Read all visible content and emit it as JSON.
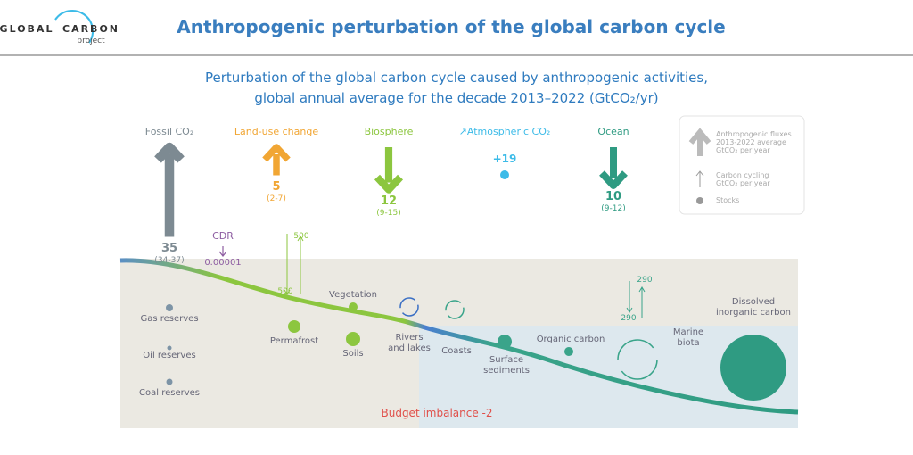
{
  "header": {
    "logo_left": "GLOBAL",
    "logo_right": "CARBON",
    "logo_sub": "project",
    "title": "Anthropogenic perturbation of the global carbon cycle"
  },
  "subtitle": [
    "Perturbation of the global carbon cycle caused by anthropogenic activities,",
    "global annual average for the decade 2013–2022 (GtCO₂/yr)"
  ],
  "fluxes": [
    {
      "label": "Fossil CO₂",
      "value": 35,
      "range": "(34-37)",
      "color": "#7d8a92",
      "direction": "up"
    },
    {
      "label": "Land-use change",
      "value": 5,
      "range": "(2-7)",
      "color": "#f1a634",
      "direction": "up"
    },
    {
      "label": "Biosphere",
      "value": 12,
      "range": "(9-15)",
      "color": "#8cc63f",
      "direction": "down"
    },
    {
      "label": "↗Atmospheric CO₂",
      "value": "+19",
      "color": "#3cbbe8"
    },
    {
      "label": "Ocean",
      "value": 10,
      "range": "(9-12)",
      "color": "#2f9b82",
      "direction": "down"
    }
  ],
  "cdr": {
    "label": "CDR",
    "value": 1e-05
  },
  "cycling": {
    "land_down": 500,
    "land_up": 500,
    "ocean_down": 290,
    "ocean_up": 290
  },
  "stocks": {
    "gas": "Gas reserves",
    "oil": "Oil reserves",
    "coal": "Coal reserves",
    "permafrost": "Permafrost",
    "vegetation": "Vegetation",
    "soils": "Soils",
    "rivers": "Rivers and lakes",
    "coasts": "Coasts",
    "sediments": "Surface sediments",
    "organic": "Organic carbon",
    "biota": "Marine biota",
    "dic": "Dissolved inorganic carbon"
  },
  "legend": {
    "fluxes": "Anthropogenic fluxes 2013-2022 average GtCO₂ per year",
    "cycling": "Carbon cycling GtCO₂ per year",
    "stocks": "Stocks"
  },
  "imbalance": "Budget imbalance -2"
}
